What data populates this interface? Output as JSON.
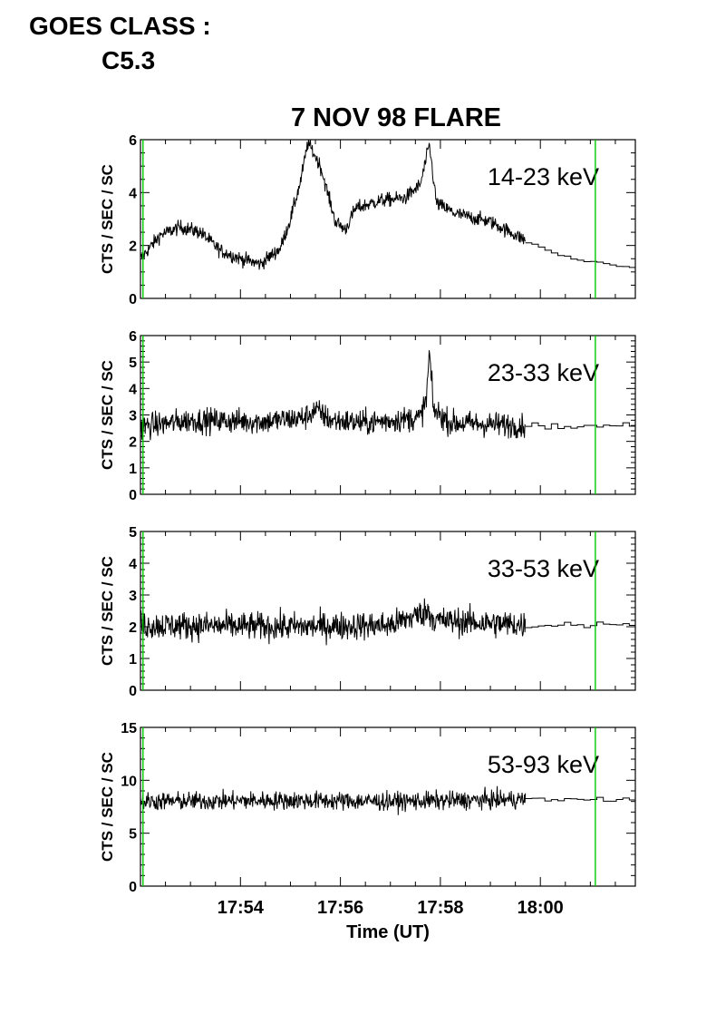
{
  "header": {
    "goes_label": "GOES CLASS :",
    "goes_value": "C5.3"
  },
  "chart_data": {
    "type": "line",
    "title": "7 NOV 98 FLARE",
    "xlabel": "Time (UT)",
    "x_tick_labels": [
      "17:54",
      "17:56",
      "17:58",
      "18:00"
    ],
    "x_ticks_min": [
      1074,
      1076,
      1078,
      1080
    ],
    "xlim_min": [
      1072.0,
      1081.9
    ],
    "data_end_min": 1079.7,
    "marker_colors": "#00c800",
    "marker_lines_min": [
      1072.05,
      1081.1
    ],
    "line_color": "#000000",
    "grid": false,
    "panels": [
      {
        "ylabel": "CTS / SEC / SC",
        "band": "14-23 keV",
        "ylim": [
          0,
          6
        ],
        "yticks": [
          0,
          2,
          4,
          6
        ],
        "noise": 0.17,
        "profile": [
          [
            1072.0,
            1.5
          ],
          [
            1072.4,
            2.4
          ],
          [
            1072.8,
            2.7
          ],
          [
            1073.2,
            2.5
          ],
          [
            1073.6,
            1.8
          ],
          [
            1074.0,
            1.5
          ],
          [
            1074.4,
            1.3
          ],
          [
            1074.8,
            1.9
          ],
          [
            1075.0,
            3.0
          ],
          [
            1075.2,
            4.4
          ],
          [
            1075.35,
            5.9
          ],
          [
            1075.6,
            5.0
          ],
          [
            1075.9,
            2.9
          ],
          [
            1076.1,
            2.6
          ],
          [
            1076.3,
            3.4
          ],
          [
            1076.8,
            3.7
          ],
          [
            1077.3,
            3.8
          ],
          [
            1077.6,
            4.3
          ],
          [
            1077.78,
            5.8
          ],
          [
            1077.92,
            3.6
          ],
          [
            1078.3,
            3.2
          ],
          [
            1079.0,
            2.9
          ],
          [
            1079.7,
            2.2
          ],
          [
            1080.2,
            1.75
          ],
          [
            1080.8,
            1.45
          ],
          [
            1081.9,
            1.15
          ]
        ],
        "amplitude_note": "cts"
      },
      {
        "ylabel": "CTS / SEC / SC",
        "band": "23-33 keV",
        "ylim": [
          0,
          6
        ],
        "yticks": [
          0,
          1,
          2,
          3,
          4,
          5,
          6
        ],
        "noise": 0.3,
        "profile": [
          [
            1072.0,
            2.55
          ],
          [
            1073.0,
            2.8
          ],
          [
            1074.5,
            2.75
          ],
          [
            1075.3,
            2.9
          ],
          [
            1075.5,
            3.2
          ],
          [
            1075.8,
            2.8
          ],
          [
            1076.5,
            2.7
          ],
          [
            1077.6,
            2.9
          ],
          [
            1077.72,
            3.6
          ],
          [
            1077.78,
            5.4
          ],
          [
            1077.86,
            3.2
          ],
          [
            1078.2,
            2.7
          ],
          [
            1079.7,
            2.6
          ],
          [
            1081.0,
            2.55
          ],
          [
            1081.9,
            2.65
          ]
        ],
        "amplitude_note": "cts"
      },
      {
        "ylabel": "CTS / SEC / SC",
        "band": "33-53 keV",
        "ylim": [
          0,
          5
        ],
        "yticks": [
          0,
          1,
          2,
          3,
          4,
          5
        ],
        "noise": 0.28,
        "profile": [
          [
            1072.0,
            2.05
          ],
          [
            1075.0,
            2.0
          ],
          [
            1077.0,
            2.05
          ],
          [
            1077.75,
            2.5
          ],
          [
            1077.9,
            2.2
          ],
          [
            1079.7,
            2.05
          ],
          [
            1081.9,
            2.1
          ]
        ],
        "amplitude_note": "cts"
      },
      {
        "ylabel": "CTS / SEC / SC",
        "band": "53-93 keV",
        "ylim": [
          0,
          15
        ],
        "yticks": [
          0,
          5,
          10,
          15
        ],
        "noise": 0.55,
        "profile": [
          [
            1072.0,
            8.0
          ],
          [
            1075.0,
            8.1
          ],
          [
            1077.0,
            8.0
          ],
          [
            1079.7,
            8.2
          ],
          [
            1081.9,
            8.2
          ]
        ],
        "amplitude_note": "cts"
      }
    ]
  }
}
